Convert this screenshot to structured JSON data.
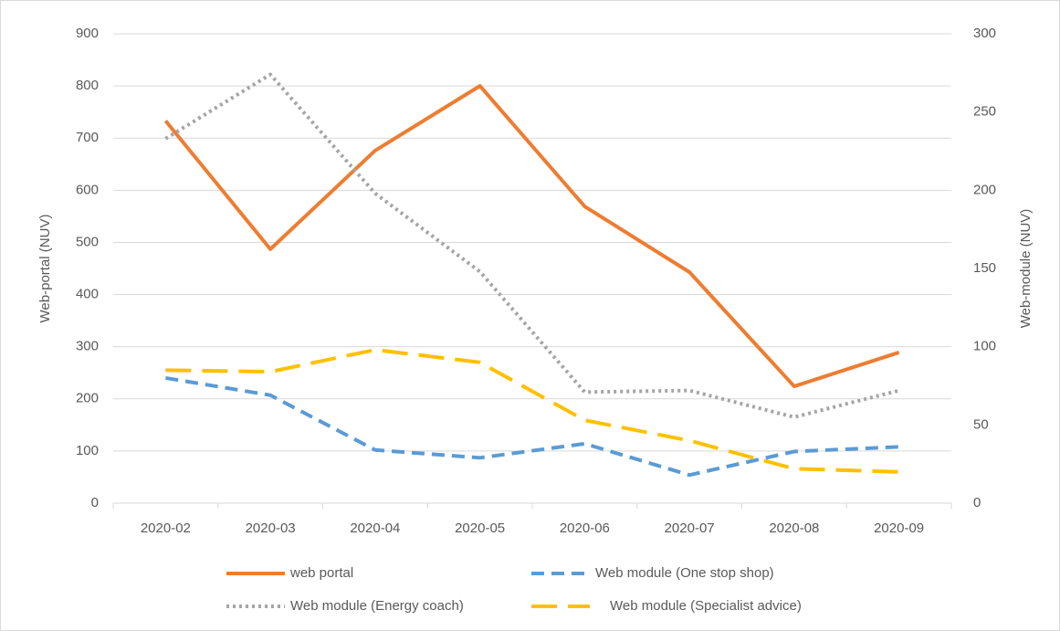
{
  "chart_data": {
    "type": "line",
    "categories": [
      "2020-02",
      "2020-03",
      "2020-04",
      "2020-05",
      "2020-06",
      "2020-07",
      "2020-08",
      "2020-09"
    ],
    "y_label": "Web-portal (NUV)",
    "y2_label": "Web-module (NUV)",
    "ylim": [
      0,
      900
    ],
    "yticks": [
      0,
      100,
      200,
      300,
      400,
      500,
      600,
      700,
      800,
      900
    ],
    "y2lim": [
      0,
      300
    ],
    "y2ticks": [
      0,
      50,
      100,
      150,
      200,
      250,
      300
    ],
    "grid": true,
    "legend": "bottom",
    "series": [
      {
        "name": "web portal",
        "color": "#ed7d31",
        "dash": "solid",
        "values": [
          733,
          487,
          676,
          800,
          569,
          443,
          224,
          289
        ]
      },
      {
        "name": "Web module (One stop shop)",
        "color": "#5b9bd5",
        "dash": "dashed",
        "axis": "y2",
        "values": [
          80,
          69,
          34,
          29,
          38,
          18,
          33,
          36
        ]
      },
      {
        "name": "Web module (Energy coach)",
        "color": "#a5a5a5",
        "dash": "dotted",
        "axis": "y2",
        "values": [
          233,
          274,
          198,
          148,
          71,
          72,
          55,
          72
        ]
      },
      {
        "name": "Web module (Specialist advice)",
        "color": "#ffc000",
        "dash": "longdash",
        "axis": "y2",
        "values": [
          85,
          84,
          98,
          90,
          53,
          40,
          22,
          20
        ]
      }
    ]
  }
}
